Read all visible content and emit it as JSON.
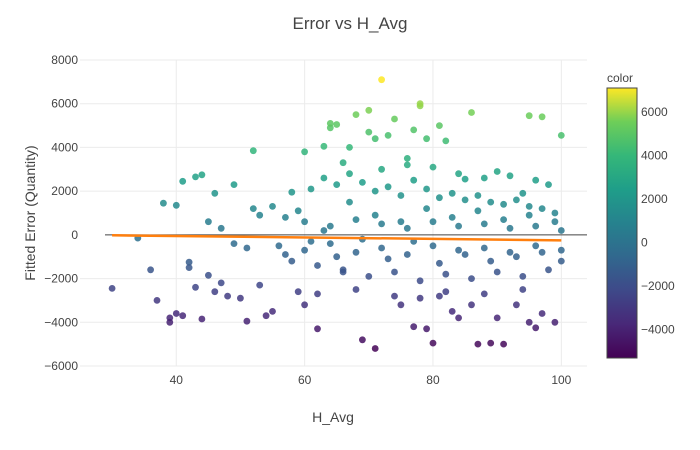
{
  "chart_data": {
    "type": "scatter",
    "title": "Error vs H_Avg",
    "xlabel": "H_Avg",
    "ylabel": "Fitted Error (Quantity)",
    "xlim": [
      25,
      104
    ],
    "ylim": [
      -6000,
      8000
    ],
    "x_ticks": [
      40,
      60,
      80,
      100
    ],
    "y_ticks": [
      -6000,
      -4000,
      -2000,
      0,
      2000,
      4000,
      6000,
      8000
    ],
    "y_tick_labels": [
      "−6000",
      "−4000",
      "−2000",
      "0",
      "2000",
      "4000",
      "6000",
      "8000"
    ],
    "grid": true,
    "zero_line": true,
    "colorscale": "Viridis",
    "colorbar": {
      "title": "color",
      "range": [
        -5300,
        7100
      ],
      "ticks": [
        -4000,
        -2000,
        0,
        2000,
        4000,
        6000
      ],
      "tick_labels": [
        "−4000",
        "−2000",
        "0",
        "2000",
        "4000",
        "6000"
      ]
    },
    "trend_line": {
      "color": "#ff7f0e",
      "x": [
        30,
        100
      ],
      "y": [
        -20,
        -250
      ]
    },
    "points": [
      [
        30,
        -2450
      ],
      [
        34,
        -150
      ],
      [
        36,
        -1600
      ],
      [
        37,
        -3000
      ],
      [
        38,
        1450
      ],
      [
        39,
        -3800
      ],
      [
        39,
        -4000
      ],
      [
        40,
        1350
      ],
      [
        40,
        -3600
      ],
      [
        41,
        2450
      ],
      [
        41,
        -3700
      ],
      [
        42,
        -1250
      ],
      [
        42,
        -1500
      ],
      [
        43,
        2650
      ],
      [
        43,
        -2400
      ],
      [
        44,
        2750
      ],
      [
        44,
        -3850
      ],
      [
        45,
        -1850
      ],
      [
        46,
        1900
      ],
      [
        46,
        -2600
      ],
      [
        47,
        -2200
      ],
      [
        48,
        -2800
      ],
      [
        49,
        2300
      ],
      [
        50,
        -2900
      ],
      [
        51,
        -3950
      ],
      [
        52,
        3850
      ],
      [
        52,
        1200
      ],
      [
        53,
        -2300
      ],
      [
        54,
        -3700
      ],
      [
        55,
        -3500
      ],
      [
        58,
        1950
      ],
      [
        59,
        -2600
      ],
      [
        60,
        3800
      ],
      [
        60,
        -3200
      ],
      [
        62,
        -4300
      ],
      [
        63,
        4050
      ],
      [
        64,
        4900
      ],
      [
        64,
        5100
      ],
      [
        65,
        5050
      ],
      [
        66,
        -1700
      ],
      [
        67,
        4000
      ],
      [
        68,
        5500
      ],
      [
        69,
        -4800
      ],
      [
        70,
        4700
      ],
      [
        70,
        5700
      ],
      [
        71,
        4400
      ],
      [
        71,
        -5200
      ],
      [
        72,
        7100
      ],
      [
        73,
        4550
      ],
      [
        74,
        5300
      ],
      [
        75,
        -3200
      ],
      [
        76,
        3200
      ],
      [
        77,
        4800
      ],
      [
        77,
        -4200
      ],
      [
        78,
        5900
      ],
      [
        78,
        6000
      ],
      [
        79,
        4400
      ],
      [
        79,
        -4300
      ],
      [
        80,
        -4950
      ],
      [
        81,
        5000
      ],
      [
        81,
        -2800
      ],
      [
        82,
        4300
      ],
      [
        83,
        -3500
      ],
      [
        84,
        -3800
      ],
      [
        85,
        2550
      ],
      [
        86,
        5600
      ],
      [
        86,
        -3200
      ],
      [
        87,
        -5000
      ],
      [
        88,
        2600
      ],
      [
        89,
        -4950
      ],
      [
        90,
        -3800
      ],
      [
        91,
        -5000
      ],
      [
        92,
        2700
      ],
      [
        93,
        -3200
      ],
      [
        94,
        1900
      ],
      [
        95,
        5450
      ],
      [
        95,
        -4000
      ],
      [
        96,
        -4250
      ],
      [
        97,
        5400
      ],
      [
        97,
        -3600
      ],
      [
        98,
        2300
      ],
      [
        99,
        -4000
      ],
      [
        100,
        4550
      ],
      [
        100,
        -1200
      ],
      [
        55,
        1300
      ],
      [
        57,
        800
      ],
      [
        61,
        2100
      ],
      [
        63,
        2600
      ],
      [
        65,
        2300
      ],
      [
        67,
        2800
      ],
      [
        69,
        2400
      ],
      [
        71,
        2000
      ],
      [
        73,
        2200
      ],
      [
        75,
        1800
      ],
      [
        77,
        2500
      ],
      [
        79,
        2100
      ],
      [
        81,
        1700
      ],
      [
        83,
        1900
      ],
      [
        85,
        1600
      ],
      [
        87,
        1800
      ],
      [
        89,
        1500
      ],
      [
        91,
        1400
      ],
      [
        93,
        1600
      ],
      [
        95,
        1300
      ],
      [
        97,
        1200
      ],
      [
        99,
        1000
      ],
      [
        58,
        -1200
      ],
      [
        62,
        -1400
      ],
      [
        66,
        -1600
      ],
      [
        70,
        -1900
      ],
      [
        74,
        -1700
      ],
      [
        78,
        -2100
      ],
      [
        82,
        -1800
      ],
      [
        86,
        -2000
      ],
      [
        90,
        -1700
      ],
      [
        94,
        -1900
      ],
      [
        98,
        -1600
      ],
      [
        60,
        600
      ],
      [
        64,
        400
      ],
      [
        68,
        700
      ],
      [
        72,
        500
      ],
      [
        76,
        300
      ],
      [
        80,
        600
      ],
      [
        84,
        400
      ],
      [
        88,
        500
      ],
      [
        92,
        300
      ],
      [
        96,
        400
      ],
      [
        100,
        200
      ],
      [
        56,
        -500
      ],
      [
        60,
        -700
      ],
      [
        64,
        -400
      ],
      [
        68,
        -800
      ],
      [
        72,
        -600
      ],
      [
        76,
        -900
      ],
      [
        80,
        -500
      ],
      [
        84,
        -700
      ],
      [
        88,
        -600
      ],
      [
        92,
        -800
      ],
      [
        96,
        -500
      ],
      [
        100,
        -700
      ],
      [
        45,
        600
      ],
      [
        47,
        300
      ],
      [
        49,
        -400
      ],
      [
        51,
        -600
      ],
      [
        53,
        900
      ],
      [
        57,
        -900
      ],
      [
        59,
        1100
      ],
      [
        61,
        -300
      ],
      [
        63,
        200
      ],
      [
        65,
        -1000
      ],
      [
        67,
        1500
      ],
      [
        69,
        -200
      ],
      [
        71,
        900
      ],
      [
        73,
        -1100
      ],
      [
        75,
        600
      ],
      [
        77,
        -300
      ],
      [
        79,
        1200
      ],
      [
        81,
        -1300
      ],
      [
        83,
        800
      ],
      [
        85,
        -900
      ],
      [
        87,
        1100
      ],
      [
        89,
        -1200
      ],
      [
        91,
        700
      ],
      [
        93,
        -1000
      ],
      [
        95,
        900
      ],
      [
        97,
        -800
      ],
      [
        99,
        600
      ],
      [
        66,
        3300
      ],
      [
        72,
        3000
      ],
      [
        76,
        3500
      ],
      [
        80,
        3100
      ],
      [
        84,
        2800
      ],
      [
        90,
        2900
      ],
      [
        96,
        2500
      ],
      [
        62,
        -2700
      ],
      [
        68,
        -2500
      ],
      [
        74,
        -2800
      ],
      [
        78,
        -2900
      ],
      [
        82,
        -2600
      ],
      [
        88,
        -2700
      ],
      [
        94,
        -2500
      ]
    ]
  }
}
